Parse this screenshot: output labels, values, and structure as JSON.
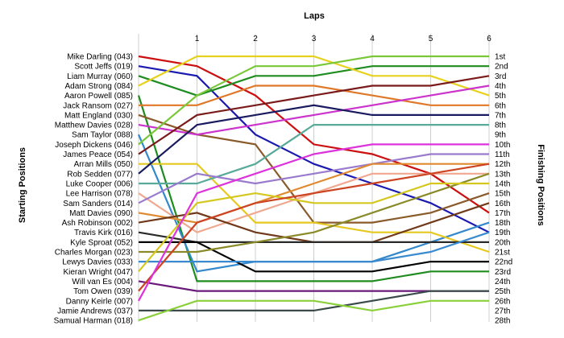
{
  "chart_data": {
    "type": "line",
    "title": "",
    "xlabel": "Laps",
    "ylabel_left": "Starting Positions",
    "ylabel_right": "Finishing Positions",
    "x": [
      0,
      1,
      2,
      3,
      4,
      5,
      6
    ],
    "x_tick_labels": [
      "1",
      "2",
      "3",
      "4",
      "5",
      "6"
    ],
    "y_range": [
      1,
      28
    ],
    "finishing_labels": [
      "1st",
      "2nd",
      "3rd",
      "4th",
      "5th",
      "6th",
      "7th",
      "8th",
      "9th",
      "10th",
      "11th",
      "12th",
      "13th",
      "14th",
      "15th",
      "16th",
      "17th",
      "18th",
      "19th",
      "20th",
      "21st",
      "22nd",
      "23rd",
      "24th",
      "25th",
      "26th",
      "27th",
      "28th"
    ],
    "series": [
      {
        "name": "Mike Darling (043)",
        "color": "#cc1010",
        "positions": [
          1,
          2,
          5,
          10,
          11,
          13,
          17
        ]
      },
      {
        "name": "Scott Jeffs (019)",
        "color": "#1a1ab0",
        "positions": [
          2,
          3,
          9,
          12,
          14,
          16,
          19
        ]
      },
      {
        "name": "Liam Murray (060)",
        "color": "#1e8c1e",
        "positions": [
          3,
          5,
          3,
          3,
          2,
          2,
          2
        ]
      },
      {
        "name": "Adam Strong (084)",
        "color": "#e6d21e",
        "positions": [
          4,
          1,
          1,
          1,
          3,
          3,
          5
        ]
      },
      {
        "name": "Aaron Powell (085)",
        "color": "#1e8c1e",
        "positions": [
          5,
          24,
          24,
          24,
          24,
          23,
          23
        ]
      },
      {
        "name": "Jack Ransom (027)",
        "color": "#e0782a",
        "positions": [
          6,
          6,
          4,
          4,
          5,
          6,
          6
        ]
      },
      {
        "name": "Matt England (030)",
        "color": "#8a5a2a",
        "positions": [
          7,
          9,
          10,
          18,
          18,
          17,
          15
        ]
      },
      {
        "name": "Matthew Davies (028)",
        "color": "#cc33cc",
        "positions": [
          8,
          9,
          8,
          7,
          6,
          5,
          4
        ]
      },
      {
        "name": "Sam Taylor (088)",
        "color": "#3388cc",
        "positions": [
          9,
          23,
          22,
          22,
          22,
          20,
          18
        ]
      },
      {
        "name": "Joseph Dickens (046)",
        "color": "#7ac83a",
        "positions": [
          10,
          5,
          2,
          2,
          1,
          1,
          1
        ]
      },
      {
        "name": "James Peace (054)",
        "color": "#7a1a1a",
        "positions": [
          11,
          7,
          6,
          5,
          4,
          4,
          3
        ]
      },
      {
        "name": "Arran Mills (050)",
        "color": "#e6c81e",
        "positions": [
          12,
          12,
          18,
          18,
          19,
          19,
          21
        ]
      },
      {
        "name": "Rob Sedden (077)",
        "color": "#1a1a60",
        "positions": [
          13,
          8,
          7,
          6,
          7,
          7,
          7
        ]
      },
      {
        "name": "Luke Cooper (006)",
        "color": "#5aaa9a",
        "positions": [
          14,
          14,
          12,
          8,
          8,
          8,
          8
        ]
      },
      {
        "name": "Lee Harrison (078)",
        "color": "#f0a890",
        "positions": [
          15,
          19,
          17,
          15,
          13,
          13,
          13
        ]
      },
      {
        "name": "Sam Sanders (014)",
        "color": "#9a7acc",
        "positions": [
          16,
          13,
          14,
          13,
          12,
          11,
          11
        ]
      },
      {
        "name": "Matt Davies (090)",
        "color": "#e08a30",
        "positions": [
          17,
          18,
          16,
          14,
          12,
          12,
          12
        ]
      },
      {
        "name": "Ash Robinson (002)",
        "color": "#703a1a",
        "positions": [
          18,
          17,
          19,
          20,
          20,
          18,
          16
        ]
      },
      {
        "name": "Travis Kirk (016)",
        "color": "#2a2a2a",
        "positions": [
          19,
          20,
          20,
          20,
          20,
          20,
          20
        ]
      },
      {
        "name": "Kyle Sproat (052)",
        "color": "#000000",
        "positions": [
          20,
          20,
          23,
          23,
          23,
          22,
          22
        ]
      },
      {
        "name": "Charles Morgan (023)",
        "color": "#8a8a2a",
        "positions": [
          21,
          21,
          20,
          19,
          17,
          15,
          13
        ]
      },
      {
        "name": "Lewys Davies (033)",
        "color": "#3a8ad0",
        "positions": [
          22,
          22,
          22,
          22,
          22,
          21,
          19
        ]
      },
      {
        "name": "Kieran Wright (047)",
        "color": "#d4c81e",
        "positions": [
          23,
          16,
          15,
          16,
          16,
          14,
          14
        ]
      },
      {
        "name": "Will van Es (004)",
        "color": "#6a1a7a",
        "positions": [
          24,
          25,
          25,
          25,
          25,
          25,
          25
        ]
      },
      {
        "name": "Tom Owen (039)",
        "color": "#cc4422",
        "positions": [
          25,
          18,
          16,
          15,
          14,
          13,
          12
        ]
      },
      {
        "name": "Danny Keirle (007)",
        "color": "#dd33dd",
        "positions": [
          26,
          15,
          13,
          11,
          10,
          10,
          10
        ]
      },
      {
        "name": "Jamie Andrews (037)",
        "color": "#3a4a4a",
        "positions": [
          27,
          27,
          27,
          27,
          26,
          25,
          25
        ]
      },
      {
        "name": "Samual Harman (018)",
        "color": "#8ad03a",
        "positions": [
          28,
          26,
          26,
          26,
          27,
          26,
          26
        ]
      }
    ]
  }
}
